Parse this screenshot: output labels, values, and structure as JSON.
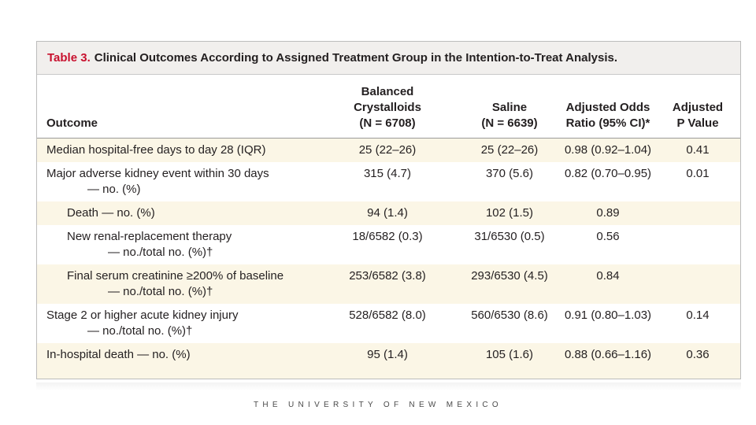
{
  "table": {
    "title_label": "Table 3.",
    "title_text": "Clinical Outcomes According to Assigned Treatment Group in the Intention-to-Treat Analysis.",
    "headers": {
      "outcome": "Outcome",
      "balanced": [
        "Balanced",
        "Crystalloids",
        "(N = 6708)"
      ],
      "saline": [
        "Saline",
        "(N = 6639)"
      ],
      "odds": [
        "Adjusted Odds",
        "Ratio (95% CI)*"
      ],
      "pvalue": [
        "Adjusted",
        "P Value"
      ]
    },
    "rows": [
      {
        "outcome": [
          "Median hospital-free days to day 28 (IQR)"
        ],
        "balanced": "25 (22–26)",
        "saline": "25 (22–26)",
        "odds": "0.98 (0.92–1.04)",
        "pvalue": "0.41"
      },
      {
        "outcome": [
          "Major adverse kidney event within 30 days",
          "— no. (%)"
        ],
        "balanced": "315 (4.7)",
        "saline": "370 (5.6)",
        "odds": "0.82 (0.70–0.95)",
        "pvalue": "0.01"
      },
      {
        "outcome": [
          "Death — no. (%)"
        ],
        "balanced": "94 (1.4)",
        "saline": "102 (1.5)",
        "odds": "0.89",
        "pvalue": ""
      },
      {
        "outcome": [
          "New renal-replacement therapy",
          "— no./total no. (%)†"
        ],
        "balanced": "18/6582 (0.3)",
        "saline": "31/6530 (0.5)",
        "odds": "0.56",
        "pvalue": ""
      },
      {
        "outcome": [
          "Final serum creatinine ≥200% of baseline",
          "— no./total no. (%)†"
        ],
        "balanced": "253/6582 (3.8)",
        "saline": "293/6530 (4.5)",
        "odds": "0.84",
        "pvalue": ""
      },
      {
        "outcome": [
          "Stage 2 or higher acute kidney injury",
          "— no./total no. (%)†"
        ],
        "balanced": "528/6582 (8.0)",
        "saline": "560/6530 (8.6)",
        "odds": "0.91 (0.80–1.03)",
        "pvalue": "0.14"
      },
      {
        "outcome": [
          "In-hospital death — no. (%)"
        ],
        "balanced": "95 (1.4)",
        "saline": "105 (1.6)",
        "odds": "0.88 (0.66–1.16)",
        "pvalue": "0.36"
      }
    ]
  },
  "footer": {
    "university": "THE UNIVERSITY OF NEW MEXICO"
  },
  "colors": {
    "title_red": "#c8102e",
    "row_shade": "#fbf6e6",
    "title_bar_bg": "#f1efed"
  }
}
